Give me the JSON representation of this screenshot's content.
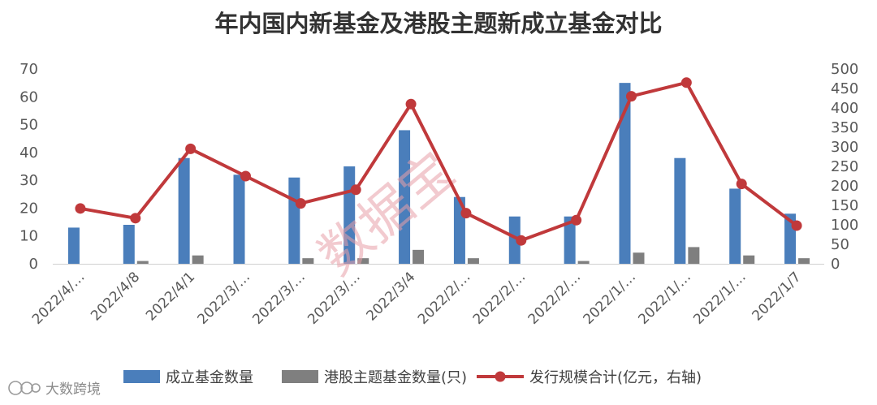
{
  "chart_data": {
    "type": "bar",
    "title": "年内国内新基金及港股主题新成立基金对比",
    "categories": [
      "2022/4/…",
      "2022/4/8",
      "2022/4/1",
      "2022/3/…",
      "2022/3/…",
      "2022/3/…",
      "2022/3/4",
      "2022/2/…",
      "2022/2/…",
      "2022/2/…",
      "2022/1/…",
      "2022/1/…",
      "2022/1/…",
      "2022/1/7"
    ],
    "series": [
      {
        "name": "成立基金数量",
        "type": "bar",
        "axis": "left",
        "color": "#4a7ebb",
        "values": [
          13,
          14,
          38,
          32,
          31,
          35,
          48,
          24,
          17,
          17,
          65,
          38,
          27,
          18
        ]
      },
      {
        "name": "港股主题基金数量(只)",
        "type": "bar",
        "axis": "left",
        "color": "#7f7f7f",
        "values": [
          0,
          1,
          3,
          0,
          2,
          2,
          5,
          2,
          0,
          1,
          4,
          6,
          3,
          2
        ]
      },
      {
        "name": "发行规模合计(亿元，右轴)",
        "type": "line",
        "axis": "right",
        "color": "#c0393b",
        "values": [
          142,
          117,
          295,
          225,
          155,
          190,
          410,
          130,
          60,
          112,
          430,
          465,
          205,
          98
        ]
      }
    ],
    "yleft": {
      "min": 0,
      "max": 70,
      "ticks": [
        0,
        10,
        20,
        30,
        40,
        50,
        60,
        70
      ]
    },
    "yright": {
      "min": 0,
      "max": 500,
      "ticks": [
        0,
        50,
        100,
        150,
        200,
        250,
        300,
        350,
        400,
        450,
        500
      ]
    },
    "grid": false,
    "legend_position": "bottom",
    "legend_labels": [
      "成立基金数量",
      "港股主题基金数量(只)",
      "发行规模合计(亿元，右轴)"
    ]
  },
  "watermark": "数据宝",
  "brand": {
    "name": "大数跨境",
    "logo_icon": "brand-logo-icon"
  }
}
